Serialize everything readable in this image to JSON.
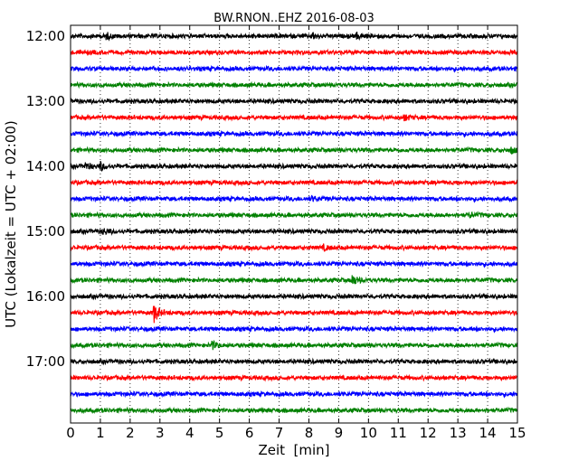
{
  "chart_data": {
    "type": "line",
    "title": "BW.RNON..EHZ 2016-08-03",
    "xlabel": "Zeit  [min]",
    "ylabel": "UTC (Lokalzeit = UTC + 02:00)",
    "xlim": [
      0,
      15
    ],
    "x_ticks": [
      "0",
      "1",
      "2",
      "3",
      "4",
      "5",
      "6",
      "7",
      "8",
      "9",
      "10",
      "11",
      "12",
      "13",
      "14",
      "15"
    ],
    "y_tick_labels": [
      "12:00",
      "13:00",
      "14:00",
      "15:00",
      "16:00",
      "17:00"
    ],
    "grid": "vertical dotted",
    "trace_colors": [
      "#000000",
      "#ff0000",
      "#0000ff",
      "#008000"
    ],
    "trace_start_times": [
      "12:00",
      "12:15",
      "12:30",
      "12:45",
      "13:00",
      "13:15",
      "13:30",
      "13:45",
      "14:00",
      "14:15",
      "14:30",
      "14:45",
      "15:00",
      "15:15",
      "15:30",
      "15:45",
      "16:00",
      "16:15",
      "16:30",
      "16:45",
      "17:00",
      "17:15",
      "17:30",
      "17:45"
    ],
    "events": [
      {
        "trace": 8,
        "x": 1.0,
        "amplitude": 0.45
      },
      {
        "trace": 8,
        "x": 0.5,
        "amplitude": 0.35
      },
      {
        "trace": 17,
        "x": 2.8,
        "amplitude": 1.0
      },
      {
        "trace": 15,
        "x": 9.45,
        "amplitude": 0.55
      },
      {
        "trace": 19,
        "x": 4.75,
        "amplitude": 0.4
      },
      {
        "trace": 0,
        "x": 1.2,
        "amplitude": 0.3
      },
      {
        "trace": 0,
        "x": 8.1,
        "amplitude": 0.3
      },
      {
        "trace": 0,
        "x": 9.6,
        "amplitude": 0.3
      },
      {
        "trace": 7,
        "x": 14.8,
        "amplitude": 0.35
      },
      {
        "trace": 5,
        "x": 11.2,
        "amplitude": 0.3
      },
      {
        "trace": 12,
        "x": 1.1,
        "amplitude": 0.3
      },
      {
        "trace": 13,
        "x": 8.5,
        "amplitude": 0.25
      },
      {
        "trace": 11,
        "x": 13.4,
        "amplitude": 0.25
      },
      {
        "trace": 10,
        "x": 8.1,
        "amplitude": 0.25
      }
    ]
  }
}
